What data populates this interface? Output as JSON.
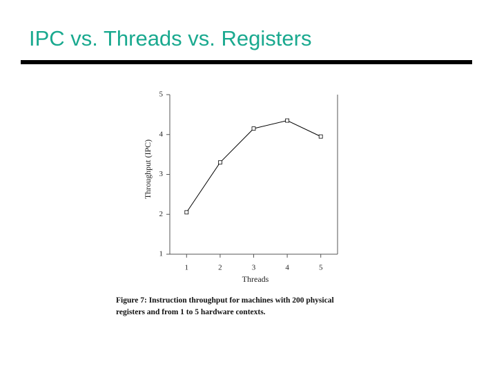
{
  "slide_title": "IPC vs. Threads vs. Registers",
  "chart_data": {
    "type": "line",
    "x": [
      1,
      2,
      3,
      4,
      5
    ],
    "series": [
      {
        "name": null,
        "color": "#000000",
        "values": [
          2.05,
          3.3,
          4.15,
          4.35,
          3.95
        ]
      }
    ],
    "xlim": [
      0.5,
      5.5
    ],
    "xticks": [
      1,
      2,
      3,
      4,
      5
    ],
    "ylim": [
      1,
      5
    ],
    "yticks": [
      1,
      2,
      3,
      4,
      5
    ],
    "xlabel": "Threads",
    "ylabel": "Throughput (IPC)",
    "caption": [
      "Figure 7: Instruction throughput for machines with 200 physical",
      "registers and from 1 to 5 hardware contexts."
    ],
    "marker": "square",
    "grid": false
  }
}
